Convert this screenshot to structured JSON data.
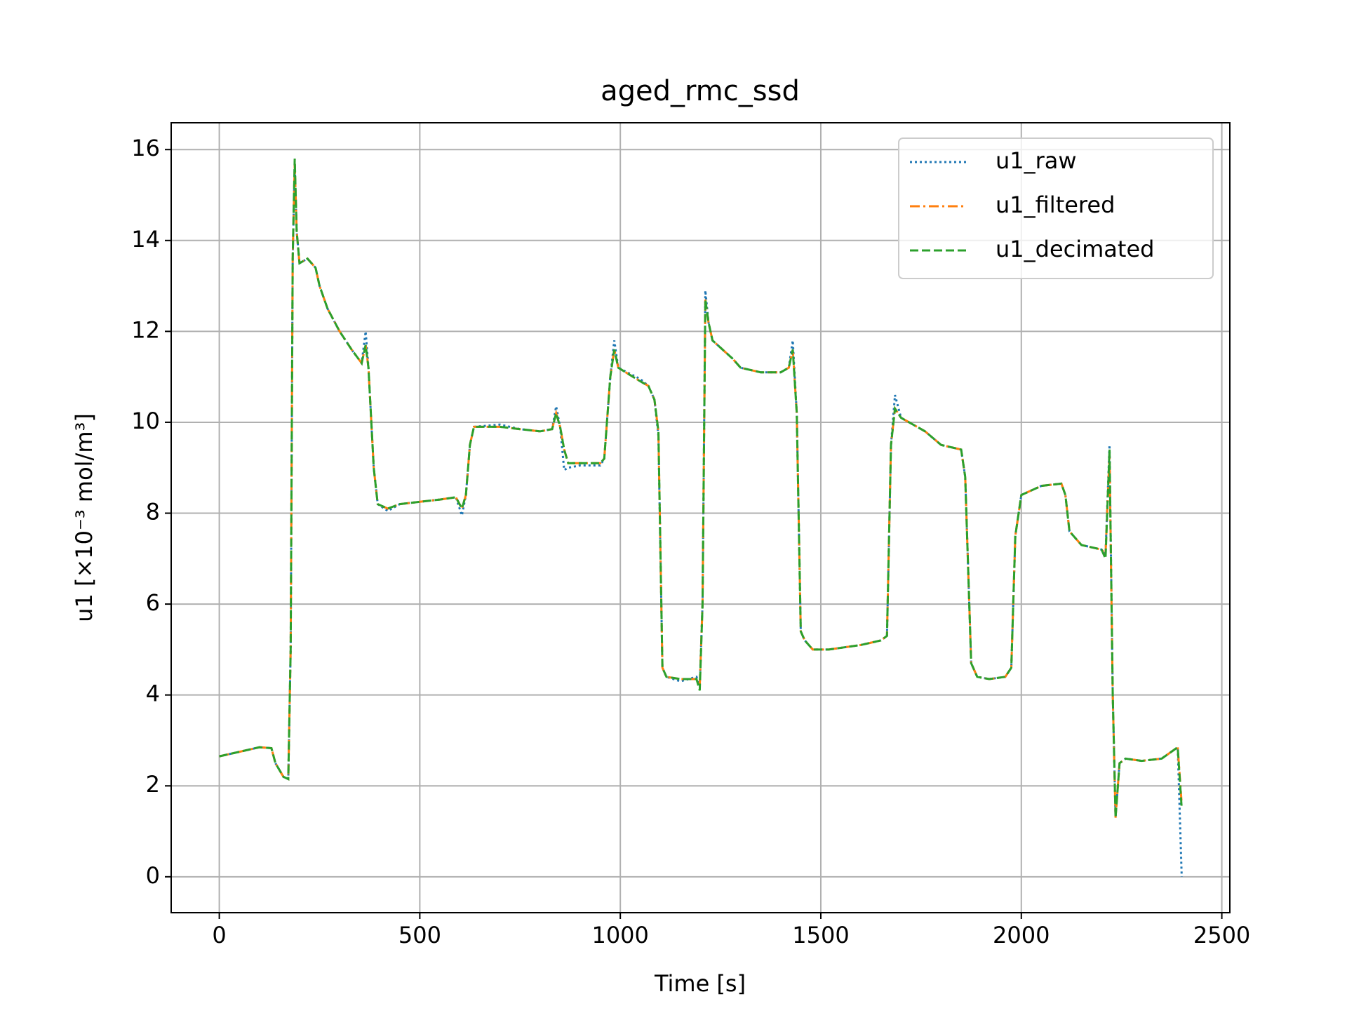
{
  "chart_data": {
    "type": "line",
    "title": "aged_rmc_ssd",
    "xlabel": "Time [s]",
    "ylabel": "u1   [×10⁻³ mol/m³]",
    "x": [
      0,
      50,
      100,
      130,
      140,
      160,
      172,
      178,
      183,
      188,
      193,
      200,
      220,
      240,
      250,
      270,
      300,
      330,
      355,
      365,
      372,
      385,
      395,
      420,
      450,
      500,
      550,
      590,
      605,
      615,
      625,
      635,
      700,
      750,
      800,
      830,
      840,
      850,
      860,
      870,
      900,
      950,
      960,
      975,
      985,
      995,
      1050,
      1070,
      1085,
      1095,
      1105,
      1115,
      1150,
      1190,
      1198,
      1205,
      1212,
      1220,
      1230,
      1280,
      1300,
      1350,
      1400,
      1420,
      1430,
      1440,
      1450,
      1460,
      1480,
      1520,
      1600,
      1650,
      1665,
      1675,
      1685,
      1700,
      1760,
      1800,
      1850,
      1860,
      1875,
      1890,
      1920,
      1960,
      1975,
      1985,
      2000,
      2050,
      2100,
      2110,
      2120,
      2150,
      2200,
      2210,
      2220,
      2228,
      2235,
      2245,
      2260,
      2300,
      2350,
      2390,
      2400
    ],
    "series": [
      {
        "name": "u1_raw",
        "color": "#1f77b4",
        "dash": "3 4",
        "values": [
          2.65,
          2.75,
          2.85,
          2.83,
          2.5,
          2.2,
          2.15,
          5,
          13.6,
          15.7,
          14.2,
          13.5,
          13.6,
          13.4,
          13.0,
          12.5,
          12.0,
          11.6,
          11.3,
          12.0,
          11.2,
          9.0,
          8.2,
          8.05,
          8.2,
          8.25,
          8.3,
          8.35,
          7.95,
          8.4,
          9.5,
          9.9,
          9.95,
          9.85,
          9.8,
          9.85,
          10.35,
          9.9,
          8.95,
          9.0,
          9.05,
          9.05,
          9.2,
          11,
          11.8,
          11.2,
          10.95,
          10.8,
          10.5,
          9.7,
          4.6,
          4.4,
          4.3,
          4.4,
          4.2,
          6,
          12.9,
          12.2,
          11.8,
          11.4,
          11.2,
          11.1,
          11.1,
          11.2,
          11.8,
          10.2,
          5.4,
          5.2,
          5.0,
          5.0,
          5.1,
          5.2,
          5.3,
          9.5,
          10.6,
          10.1,
          9.8,
          9.5,
          9.4,
          8.8,
          4.7,
          4.4,
          4.35,
          4.4,
          4.6,
          7.5,
          8.4,
          8.6,
          8.65,
          8.4,
          7.6,
          7.3,
          7.2,
          7.1,
          9.5,
          4,
          1.3,
          2.5,
          2.6,
          2.55,
          2.6,
          2.85,
          0
        ]
      },
      {
        "name": "u1_filtered",
        "color": "#ff7f0e",
        "dash": "14 5 3 5",
        "values": [
          2.65,
          2.75,
          2.85,
          2.83,
          2.5,
          2.2,
          2.15,
          5,
          13.6,
          15.7,
          14.2,
          13.5,
          13.6,
          13.4,
          13.0,
          12.5,
          12.0,
          11.6,
          11.3,
          11.7,
          11.2,
          9.0,
          8.2,
          8.1,
          8.2,
          8.25,
          8.3,
          8.35,
          8.1,
          8.4,
          9.5,
          9.9,
          9.9,
          9.85,
          9.8,
          9.85,
          10.2,
          9.9,
          9.4,
          9.1,
          9.1,
          9.1,
          9.2,
          11,
          11.6,
          11.2,
          10.9,
          10.8,
          10.5,
          9.8,
          4.6,
          4.4,
          4.35,
          4.35,
          4.2,
          6,
          12.7,
          12.2,
          11.8,
          11.4,
          11.2,
          11.1,
          11.1,
          11.2,
          11.6,
          10.2,
          5.4,
          5.2,
          5.0,
          5.0,
          5.1,
          5.2,
          5.3,
          9.5,
          10.3,
          10.1,
          9.8,
          9.5,
          9.4,
          8.8,
          4.7,
          4.4,
          4.35,
          4.4,
          4.6,
          7.5,
          8.4,
          8.6,
          8.65,
          8.4,
          7.6,
          7.3,
          7.2,
          7.1,
          9.3,
          4,
          1.3,
          2.5,
          2.6,
          2.55,
          2.6,
          2.85,
          1.6
        ]
      },
      {
        "name": "u1_decimated",
        "color": "#2ca02c",
        "dash": "12 5",
        "values": [
          2.65,
          2.75,
          2.85,
          2.83,
          2.5,
          2.2,
          2.15,
          5,
          13.6,
          15.8,
          14.2,
          13.5,
          13.6,
          13.4,
          13.0,
          12.5,
          12.0,
          11.6,
          11.3,
          11.7,
          11.2,
          9.0,
          8.2,
          8.1,
          8.2,
          8.25,
          8.3,
          8.35,
          8.1,
          8.4,
          9.5,
          9.9,
          9.9,
          9.85,
          9.8,
          9.85,
          10.2,
          9.9,
          9.4,
          9.1,
          9.1,
          9.1,
          9.2,
          11,
          11.6,
          11.2,
          10.9,
          10.8,
          10.5,
          9.8,
          4.6,
          4.4,
          4.35,
          4.35,
          4.1,
          6,
          12.7,
          12.2,
          11.8,
          11.4,
          11.2,
          11.1,
          11.1,
          11.2,
          11.6,
          10.2,
          5.4,
          5.2,
          5.0,
          5.0,
          5.1,
          5.2,
          5.3,
          9.5,
          10.3,
          10.1,
          9.8,
          9.5,
          9.4,
          8.8,
          4.7,
          4.4,
          4.35,
          4.4,
          4.6,
          7.5,
          8.4,
          8.6,
          8.65,
          8.4,
          7.6,
          7.3,
          7.2,
          7.0,
          9.4,
          4,
          1.3,
          2.5,
          2.6,
          2.55,
          2.6,
          2.85,
          1.5
        ]
      }
    ],
    "xlim": [
      -120,
      2520
    ],
    "xticks": [
      0,
      500,
      1000,
      1500,
      2000,
      2500
    ],
    "ylim": [
      -0.79,
      16.59
    ],
    "yticks": [
      0,
      2,
      4,
      6,
      8,
      10,
      12,
      14,
      16
    ],
    "grid": true,
    "legend": "upper right"
  }
}
